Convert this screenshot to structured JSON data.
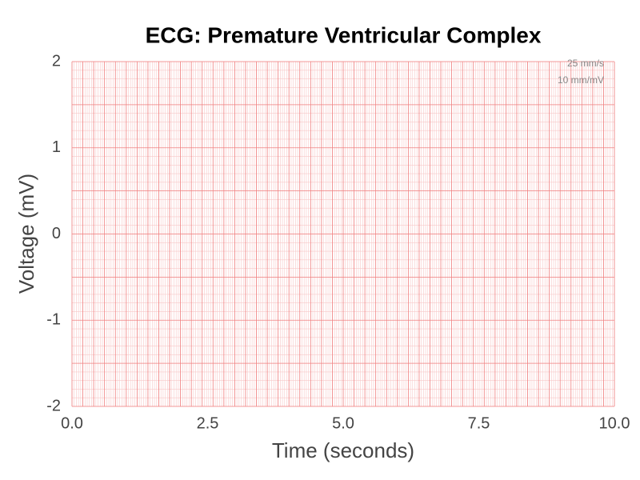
{
  "chart_data": {
    "type": "line",
    "title": "ECG: Premature Ventricular Complex",
    "x_label": "Time (seconds)",
    "y_label": "Voltage (mV)",
    "annotations": [
      "25 mm/s",
      "10 mm/mV"
    ],
    "xlim": [
      0,
      10
    ],
    "ylim": [
      -2,
      2
    ],
    "xticks": [
      {
        "value": 0,
        "label": "0.0"
      },
      2.5,
      {
        "value": 5,
        "label": "5.0"
      },
      7.5,
      {
        "value": 10,
        "label": "10.0"
      }
    ],
    "yticks": [
      -2,
      -1,
      0,
      1,
      2
    ],
    "grid": {
      "major_x": 0.2,
      "minor_x": 0.04,
      "major_y": 0.5,
      "minor_y": 0.1,
      "major_color": "#f08080",
      "minor_color": "#f8c8c8"
    }
  }
}
